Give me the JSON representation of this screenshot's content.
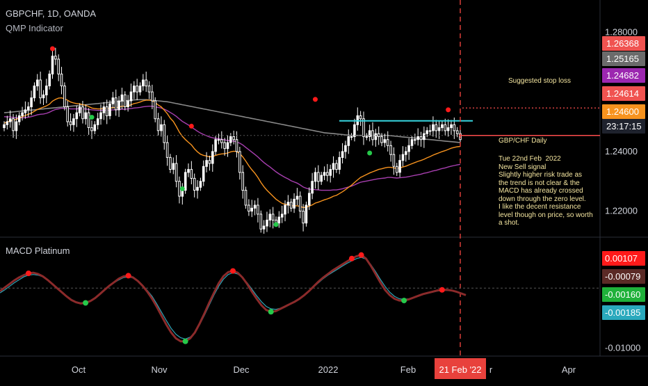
{
  "header": {
    "symbol": "GBPCHF, 1D, OANDA",
    "indicator": "QMP Indicator",
    "macd_title": "MACD Platinum"
  },
  "annotation": {
    "stop_loss_label": "Suggested stop loss",
    "note_title": "GBP/CHF Daily",
    "note_body": "Tue 22nd Feb  2022\nNew Sell signal\nSlightly higher risk trade as\nthe trend is not clear & the\nMACD has already crossed\ndown through the zero level.\nI like the decent resistance\nlevel though on price, so worth\na shot."
  },
  "colors": {
    "background": "#000000",
    "candle": "#ffffff",
    "ema_fast": "#f7931e",
    "ema_mid": "#a83fb0",
    "sma_slow": "#8a8a8a",
    "resistance": "#37d6e0",
    "stop_loss": "#ff4d4d",
    "signal_sell": "#ff1a1a",
    "signal_buy": "#26c94a",
    "macd_line": "#8b2a2a",
    "macd_signal": "#2fa6b8",
    "current_date_badge": "#e8413c"
  },
  "chart_data": [
    {
      "type": "candlestick",
      "title": "GBPCHF, 1D, OANDA",
      "y_ticks": [
        "1.28000",
        "1.24000",
        "1.22000"
      ],
      "ylim": [
        1.2115,
        1.2885
      ],
      "x_ticks": [
        "Oct",
        "Nov",
        "Dec",
        "2022",
        "Feb",
        "Apr"
      ],
      "x_tick_partial": "r",
      "current_date_label": "21 Feb '22",
      "countdown": "23:17:15",
      "price_badges": [
        {
          "value": "1.26368",
          "color": "#f05350"
        },
        {
          "value": "1.25165",
          "color": "#6b6b6b"
        },
        {
          "value": "1.24682",
          "color": "#9c27b0"
        },
        {
          "value": "1.24614",
          "color": "#f05350"
        },
        {
          "value": "1.24600",
          "color": "#f7931e"
        }
      ],
      "resistance_level": 1.2503,
      "stop_loss_level": 1.2546,
      "last_close": 1.2454,
      "candles_close": [
        1.249,
        1.25,
        1.251,
        1.247,
        1.25,
        1.252,
        1.253,
        1.254,
        1.255,
        1.258,
        1.262,
        1.264,
        1.258,
        1.259,
        1.262,
        1.266,
        1.272,
        1.271,
        1.266,
        1.262,
        1.255,
        1.25,
        1.249,
        1.251,
        1.253,
        1.255,
        1.251,
        1.253,
        1.248,
        1.247,
        1.249,
        1.251,
        1.253,
        1.255,
        1.252,
        1.256,
        1.258,
        1.254,
        1.257,
        1.259,
        1.255,
        1.257,
        1.26,
        1.262,
        1.26,
        1.262,
        1.264,
        1.262,
        1.26,
        1.257,
        1.251,
        1.247,
        1.249,
        1.243,
        1.238,
        1.234,
        1.236,
        1.23,
        1.225,
        1.227,
        1.233,
        1.234,
        1.231,
        1.227,
        1.228,
        1.23,
        1.235,
        1.237,
        1.236,
        1.24,
        1.244,
        1.244,
        1.243,
        1.241,
        1.243,
        1.245,
        1.244,
        1.24,
        1.233,
        1.227,
        1.222,
        1.22,
        1.221,
        1.222,
        1.219,
        1.214,
        1.215,
        1.217,
        1.219,
        1.217,
        1.216,
        1.218,
        1.219,
        1.222,
        1.223,
        1.221,
        1.224,
        1.225,
        1.22,
        1.216,
        1.222,
        1.226,
        1.23,
        1.233,
        1.23,
        1.232,
        1.233,
        1.232,
        1.234,
        1.236,
        1.234,
        1.238,
        1.24,
        1.242,
        1.245,
        1.245,
        1.249,
        1.252,
        1.251,
        1.245,
        1.245,
        1.247,
        1.244,
        1.246,
        1.245,
        1.243,
        1.244,
        1.242,
        1.239,
        1.235,
        1.233,
        1.237,
        1.239,
        1.24,
        1.242,
        1.244,
        1.244,
        1.245,
        1.244,
        1.246,
        1.247,
        1.247,
        1.249,
        1.247,
        1.248,
        1.249,
        1.247,
        1.248,
        1.249,
        1.247,
        1.246,
        1.244
      ],
      "ema_fast": [
        1.2495,
        1.2499,
        1.2503,
        1.2505,
        1.2508,
        1.2512,
        1.2517,
        1.2521,
        1.2525,
        1.2529,
        1.2535,
        1.2541,
        1.2545,
        1.2549,
        1.2553,
        1.2559,
        1.2569,
        1.2575,
        1.2579,
        1.258,
        1.2577,
        1.2572,
        1.2566,
        1.2563,
        1.2561,
        1.256,
        1.2557,
        1.2555,
        1.2551,
        1.2546,
        1.2544,
        1.2543,
        1.2543,
        1.2545,
        1.2544,
        1.2545,
        1.2548,
        1.2547,
        1.2549,
        1.2552,
        1.2552,
        1.2553,
        1.2557,
        1.2561,
        1.2563,
        1.2566,
        1.257,
        1.2572,
        1.2572,
        1.2571,
        1.2564,
        1.2556,
        1.255,
        1.2539,
        1.2527,
        1.2512,
        1.2501,
        1.2484,
        1.2465,
        1.2451,
        1.244,
        1.2431,
        1.2422,
        1.2409,
        1.2399,
        1.2391,
        1.2387,
        1.2385,
        1.2382,
        1.2383,
        1.2387,
        1.239,
        1.2392,
        1.2393,
        1.2395,
        1.2399,
        1.2401,
        1.24,
        1.2393,
        1.2382,
        1.2368,
        1.2352,
        1.2339,
        1.2327,
        1.2313,
        1.2296,
        1.2282,
        1.227,
        1.226,
        1.225,
        1.224,
        1.2233,
        1.2226,
        1.2223,
        1.2222,
        1.2218,
        1.2218,
        1.2218,
        1.2216,
        1.2212,
        1.2213,
        1.2217,
        1.2221,
        1.2227,
        1.223,
        1.2234,
        1.2238,
        1.2241,
        1.2245,
        1.225,
        1.2253,
        1.2259,
        1.2265,
        1.2272,
        1.228,
        1.2287,
        1.2296,
        1.2305,
        1.2313,
        1.2318,
        1.2323,
        1.2328,
        1.2332,
        1.2336,
        1.234,
        1.2342,
        1.2345,
        1.2347,
        1.2347,
        1.2345,
        1.2344,
        1.2345,
        1.2348,
        1.2351,
        1.2355,
        1.2359,
        1.2363,
        1.2367,
        1.237,
        1.2374,
        1.2379,
        1.2383,
        1.2388,
        1.2392,
        1.2396,
        1.24,
        1.2403,
        1.2407,
        1.2411,
        1.2414,
        1.2416,
        1.2417
      ],
      "ema_mid": [
        1.2517,
        1.2516,
        1.2516,
        1.2514,
        1.2513,
        1.2513,
        1.2513,
        1.2514,
        1.2515,
        1.2517,
        1.252,
        1.2523,
        1.2525,
        1.2526,
        1.2528,
        1.2532,
        1.2537,
        1.2541,
        1.2543,
        1.2545,
        1.2545,
        1.2544,
        1.2543,
        1.2543,
        1.2543,
        1.2544,
        1.2543,
        1.2543,
        1.2541,
        1.254,
        1.2539,
        1.2538,
        1.2538,
        1.2539,
        1.2538,
        1.2539,
        1.254,
        1.254,
        1.2541,
        1.2542,
        1.2542,
        1.2543,
        1.2544,
        1.2546,
        1.2547,
        1.2548,
        1.255,
        1.2551,
        1.2552,
        1.2552,
        1.255,
        1.2548,
        1.2546,
        1.2542,
        1.2537,
        1.2531,
        1.2525,
        1.2518,
        1.2509,
        1.2501,
        1.2495,
        1.2489,
        1.2482,
        1.2475,
        1.2468,
        1.2462,
        1.2457,
        1.2453,
        1.2449,
        1.2446,
        1.2444,
        1.2443,
        1.2441,
        1.2439,
        1.2437,
        1.2436,
        1.2435,
        1.2432,
        1.2428,
        1.2422,
        1.2414,
        1.2406,
        1.2398,
        1.239,
        1.2382,
        1.2372,
        1.2363,
        1.2355,
        1.2348,
        1.234,
        1.2332,
        1.2325,
        1.2319,
        1.2313,
        1.2308,
        1.2302,
        1.2298,
        1.2294,
        1.2288,
        1.2281,
        1.2277,
        1.2274,
        1.2273,
        1.2272,
        1.2271,
        1.227,
        1.227,
        1.227,
        1.227,
        1.2271,
        1.2271,
        1.2273,
        1.2275,
        1.2278,
        1.2281,
        1.2284,
        1.2288,
        1.2293,
        1.2297,
        1.2299,
        1.2301,
        1.2303,
        1.2305,
        1.2307,
        1.2309,
        1.231,
        1.2311,
        1.2313,
        1.2313,
        1.2312,
        1.2311,
        1.2312,
        1.2313,
        1.2314,
        1.2316,
        1.2318,
        1.232,
        1.2322,
        1.2324,
        1.2327,
        1.2329,
        1.2332,
        1.2335,
        1.2337,
        1.234,
        1.2343,
        1.2345,
        1.2348,
        1.2351,
        1.2353,
        1.2355,
        1.2357
      ],
      "sma_slow": [
        1.253,
        1.2531,
        1.2532,
        1.2533,
        1.2534,
        1.2535,
        1.2536,
        1.2537,
        1.2538,
        1.2539,
        1.254,
        1.2541,
        1.2542,
        1.2543,
        1.2544,
        1.2545,
        1.2546,
        1.2547,
        1.2548,
        1.2549,
        1.255,
        1.2551,
        1.2552,
        1.2553,
        1.2554,
        1.2555,
        1.2556,
        1.2557,
        1.2558,
        1.2559,
        1.256,
        1.2561,
        1.2562,
        1.2563,
        1.2564,
        1.2565,
        1.2566,
        1.2567,
        1.2568,
        1.2569,
        1.257,
        1.2571,
        1.2572,
        1.2573,
        1.2574,
        1.2574,
        1.2574,
        1.2574,
        1.2573,
        1.2572,
        1.2571,
        1.257,
        1.2569,
        1.2568,
        1.2567,
        1.2565,
        1.2563,
        1.2561,
        1.2559,
        1.2557,
        1.2555,
        1.2553,
        1.2551,
        1.2549,
        1.2547,
        1.2545,
        1.2543,
        1.2541,
        1.2539,
        1.2537,
        1.2535,
        1.2533,
        1.2531,
        1.2529,
        1.2527,
        1.2525,
        1.2523,
        1.2521,
        1.2519,
        1.2517,
        1.2515,
        1.2513,
        1.2511,
        1.2509,
        1.2507,
        1.2505,
        1.2503,
        1.2501,
        1.2499,
        1.2497,
        1.2495,
        1.2493,
        1.2491,
        1.2489,
        1.2487,
        1.2485,
        1.2483,
        1.2481,
        1.2479,
        1.2477,
        1.2475,
        1.2473,
        1.2471,
        1.2469,
        1.2467,
        1.2465,
        1.2463,
        1.2462,
        1.2461,
        1.246,
        1.2459,
        1.2458,
        1.2457,
        1.2456,
        1.2455,
        1.2454,
        1.2454,
        1.2454,
        1.2454,
        1.2454,
        1.2454,
        1.2454,
        1.2454,
        1.2454,
        1.2454,
        1.2454,
        1.2454,
        1.2454,
        1.2453,
        1.2452,
        1.2451,
        1.245,
        1.2449,
        1.2448,
        1.2447,
        1.2446,
        1.2445,
        1.2444,
        1.2443,
        1.2442,
        1.2441,
        1.244,
        1.2439,
        1.2438,
        1.2437,
        1.2436,
        1.2435,
        1.2434,
        1.2433,
        1.2432,
        1.2431,
        1.243
      ],
      "sell_signals": [
        {
          "i": 16,
          "price": 1.2745
        },
        {
          "i": 62,
          "price": 1.2485
        },
        {
          "i": 103,
          "price": 1.2575
        },
        {
          "i": 147,
          "price": 1.254
        }
      ],
      "buy_signals": [
        {
          "i": 29,
          "price": 1.2515
        },
        {
          "i": 59,
          "price": 1.2275
        },
        {
          "i": 90,
          "price": 1.2155
        },
        {
          "i": 121,
          "price": 1.2395
        }
      ]
    },
    {
      "type": "line",
      "title": "MACD Platinum",
      "y_ticks": [
        "-0.01000"
      ],
      "ylim": [
        -0.0115,
        0.0085
      ],
      "value_badges": [
        {
          "value": "0.00107",
          "color": "#ff1a1a"
        },
        {
          "value": "-0.00079",
          "color": "#5b2a26"
        },
        {
          "value": "-0.00160",
          "color": "#1fb13a"
        },
        {
          "value": "-0.00185",
          "color": "#2aa9bd"
        }
      ],
      "macd": [
        -0.0005,
        0.0001,
        0.0007,
        0.0013,
        0.0018,
        0.0022,
        0.0025,
        0.0026,
        0.0024,
        0.002,
        0.0014,
        0.0007,
        0.0,
        -0.0007,
        -0.0014,
        -0.002,
        -0.0024,
        -0.0026,
        -0.0025,
        -0.0022,
        -0.0017,
        -0.001,
        -0.0003,
        0.0004,
        0.001,
        0.0016,
        0.002,
        0.0021,
        0.0018,
        0.0012,
        0.0004,
        -0.0006,
        -0.0018,
        -0.0032,
        -0.0047,
        -0.0062,
        -0.0075,
        -0.0085,
        -0.009,
        -0.009,
        -0.0085,
        -0.0075,
        -0.006,
        -0.0043,
        -0.0025,
        -0.0008,
        0.0008,
        0.002,
        0.0027,
        0.0029,
        0.0026,
        0.0018,
        0.0007,
        -0.0006,
        -0.0018,
        -0.0029,
        -0.0037,
        -0.004,
        -0.0039,
        -0.0035,
        -0.0031,
        -0.0027,
        -0.0023,
        -0.0018,
        -0.0012,
        -0.0005,
        0.0003,
        0.0011,
        0.0018,
        0.0024,
        0.003,
        0.0035,
        0.004,
        0.0045,
        0.005,
        0.0054,
        0.0056,
        0.005,
        0.0038,
        0.0024,
        0.001,
        -0.0003,
        -0.0012,
        -0.0018,
        -0.0021,
        -0.0021,
        -0.0019,
        -0.0016,
        -0.0013,
        -0.001,
        -0.0008,
        -0.0006,
        -0.0004,
        -0.0003,
        -0.0003,
        -0.0004,
        -0.0006,
        -0.0009,
        -0.0012
      ],
      "signal": [
        -0.0008,
        -0.0003,
        0.0003,
        0.0009,
        0.0014,
        0.0019,
        0.0022,
        0.0023,
        0.0022,
        0.0019,
        0.0014,
        0.0008,
        0.0001,
        -0.0006,
        -0.0013,
        -0.0019,
        -0.0023,
        -0.0025,
        -0.0024,
        -0.0021,
        -0.0016,
        -0.001,
        -0.0003,
        0.0003,
        0.0009,
        0.0014,
        0.0018,
        0.0019,
        0.0017,
        0.0012,
        0.0005,
        -0.0004,
        -0.0014,
        -0.0027,
        -0.0041,
        -0.0055,
        -0.0068,
        -0.0078,
        -0.0084,
        -0.0086,
        -0.0083,
        -0.0075,
        -0.0062,
        -0.0046,
        -0.0029,
        -0.0012,
        0.0003,
        0.0015,
        0.0023,
        0.0026,
        0.0024,
        0.0018,
        0.0009,
        -0.0002,
        -0.0013,
        -0.0023,
        -0.0031,
        -0.0035,
        -0.0036,
        -0.0034,
        -0.003,
        -0.0026,
        -0.0022,
        -0.0017,
        -0.0011,
        -0.0005,
        0.0002,
        0.0009,
        0.0016,
        0.0022,
        0.0027,
        0.0032,
        0.0037,
        0.0042,
        0.0046,
        0.005,
        0.0052,
        0.0049,
        0.004,
        0.0028,
        0.0015,
        0.0003,
        -0.0007,
        -0.0014,
        -0.0018,
        -0.0019,
        -0.0018,
        -0.0016,
        -0.0013,
        -0.0011,
        -0.0009,
        -0.0007,
        -0.0005,
        -0.0004,
        -0.0004,
        -0.0004,
        -0.0006,
        -0.0008,
        -0.0011
      ],
      "sell_signals": [
        6,
        27,
        49,
        74,
        76,
        93
      ],
      "buy_signals": [
        18,
        39,
        57,
        85
      ]
    }
  ]
}
